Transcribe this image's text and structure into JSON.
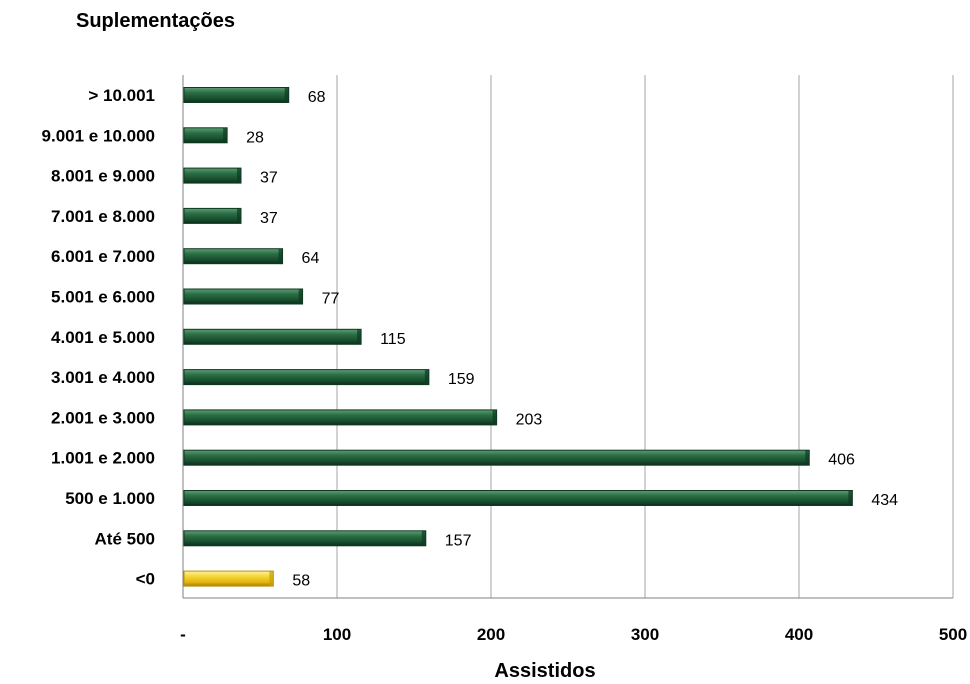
{
  "chart_data": {
    "type": "bar",
    "orientation": "horizontal",
    "title": "Suplementações",
    "xlabel": "Assistidos",
    "ylabel": "",
    "xlim": [
      0,
      500
    ],
    "x_ticks": [
      {
        "value": 0,
        "label": "-"
      },
      {
        "value": 100,
        "label": "100"
      },
      {
        "value": 200,
        "label": "200"
      },
      {
        "value": 300,
        "label": "300"
      },
      {
        "value": 400,
        "label": "400"
      },
      {
        "value": 500,
        "label": "500"
      }
    ],
    "grid": "vertical",
    "categories": [
      "> 10.001",
      "9.001 e 10.000",
      "8.001 e  9.000",
      "7.001 e  8.000",
      "6.001 e  7.000",
      "5.001 e  6.000",
      "4.001 e  5.000",
      "3.001 e  4.000",
      "2.001 e  3.000",
      "1.001 e  2.000",
      "500 e 1.000",
      "Até 500",
      "<0"
    ],
    "values": [
      68,
      28,
      37,
      37,
      64,
      77,
      115,
      159,
      203,
      406,
      434,
      157,
      58
    ],
    "data_labels": [
      "68",
      "28",
      "37",
      "37",
      "64",
      "77",
      "115",
      "159",
      "203",
      "406",
      "434",
      "157",
      "58"
    ],
    "colors": {
      "default_bar": "#1e5c38",
      "highlight_bar": "#f2cc1c",
      "grid": "#a6a6a6",
      "axis": "#808080"
    },
    "highlight_category": "<0"
  }
}
